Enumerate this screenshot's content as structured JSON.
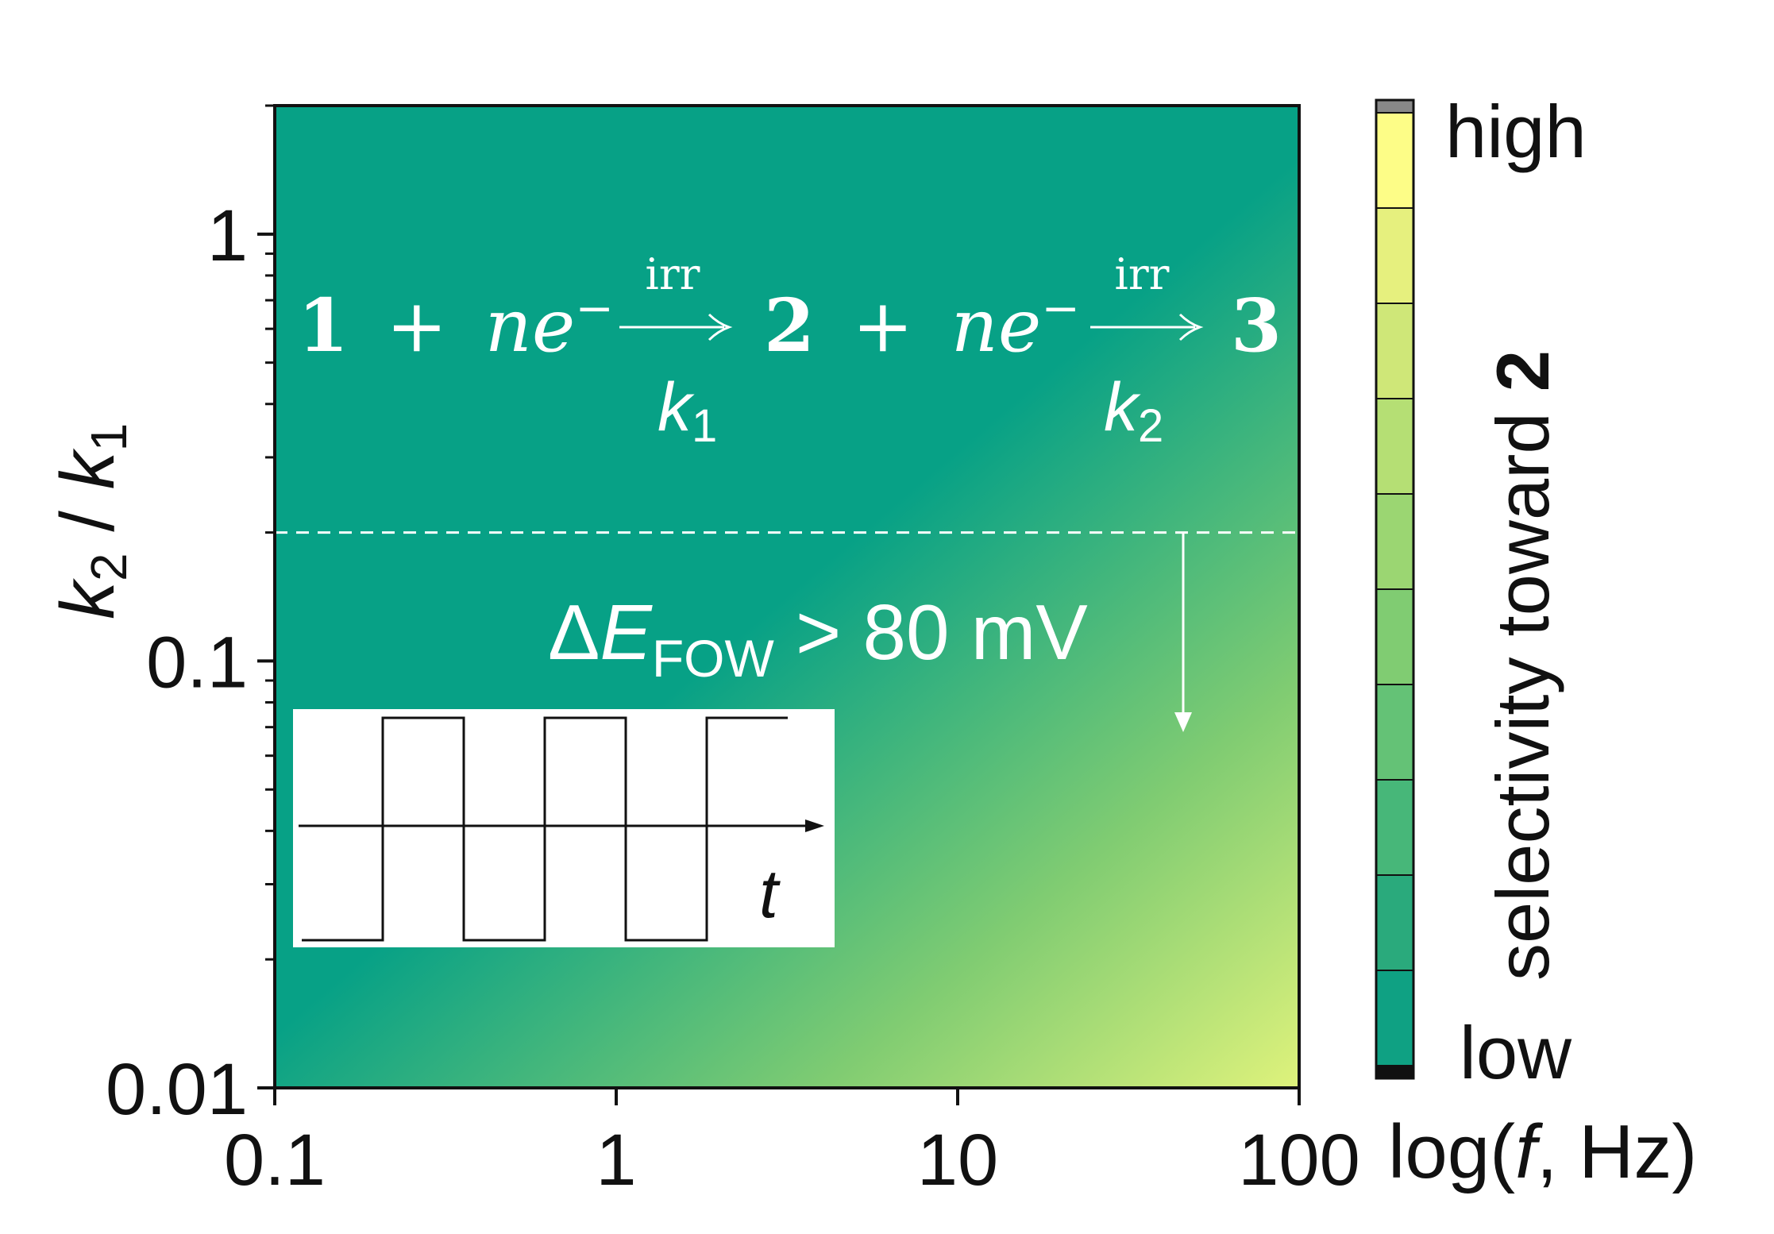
{
  "chart_data": {
    "type": "heatmap",
    "x_axis": {
      "scale": "log",
      "range": [
        0.1,
        100
      ],
      "tick_labels": [
        "0.1",
        "1",
        "10",
        "100"
      ],
      "title_parts": [
        "log(",
        "f",
        ", Hz)"
      ]
    },
    "y_axis": {
      "scale": "log",
      "range": [
        0.01,
        2
      ],
      "tick_labels": [
        "0.01",
        "0.1",
        "1"
      ],
      "title_k2": "k",
      "title_sub2": "2",
      "title_sep": " / ",
      "title_k1": "k",
      "title_sub1": "1"
    },
    "colorbar": {
      "high_label": "high",
      "low_label": "low",
      "title": "selectivity toward ",
      "title_bold": "2",
      "levels": 10,
      "colors_high_to_low": [
        "#fdfd87",
        "#e6f07e",
        "#cfe778",
        "#b5df74",
        "#9bd672",
        "#80cc72",
        "#64c276",
        "#47b779",
        "#2aaa7c",
        "#0fa183"
      ],
      "overflow_color": "#888888",
      "underflow_color": "#111111"
    },
    "field_colors": {
      "low": "#07a186",
      "high": "#e3f47c"
    },
    "threshold_line": {
      "y_value": 0.2,
      "style": "dashed",
      "label_delta": "Δ",
      "label_E": "E",
      "label_sub": "FOW",
      "label_rest": " > 80 mV"
    },
    "reaction_scheme": {
      "r1": "1",
      "plus1": "+",
      "n1": "n",
      "e1": "e",
      "minus1": "−",
      "arrow1_top": "irr",
      "r2": "2",
      "plus2": "+",
      "n2": "n",
      "e2": "e",
      "minus2": "−",
      "arrow2_top": "irr",
      "r3": "3",
      "k1": "k",
      "k1_sub": "1",
      "k2": "k",
      "k2_sub": "2"
    },
    "inset": {
      "axis_label": "t",
      "waveform": "square"
    }
  }
}
